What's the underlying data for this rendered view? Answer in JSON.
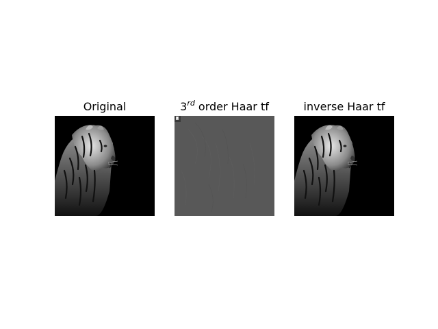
{
  "panels": [
    {
      "title": "Original",
      "subject": "tiger portrait, black and white"
    },
    {
      "title_prefix": "3",
      "title_sup": "rd",
      "title_suffix": " order Haar tf",
      "subject": "Haar wavelet transform coefficients (mostly flat gray)"
    },
    {
      "title": "inverse Haar tf",
      "subject": "reconstructed tiger portrait, black and white"
    }
  ],
  "colors": {
    "background": "#ffffff",
    "image_background": "#000000",
    "haar_gray": "#585858"
  }
}
